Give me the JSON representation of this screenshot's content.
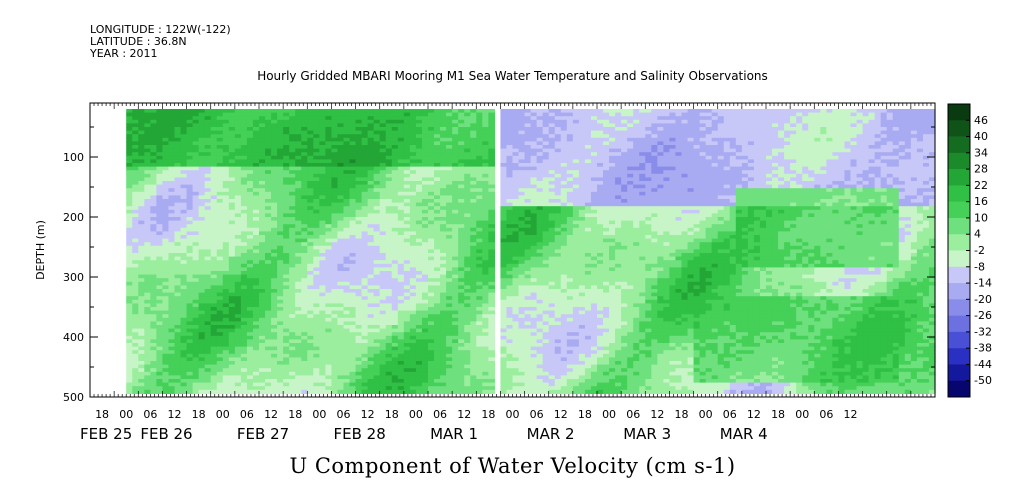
{
  "header": {
    "longitude": "LONGITUDE : 122W(-122)",
    "latitude": "LATITUDE : 36.8N",
    "year": "YEAR : 2011"
  },
  "chart_data": {
    "type": "heatmap",
    "title": "Hourly Gridded MBARI Mooring M1 Sea Water Temperature and Salinity Observations",
    "xlabel": "U Component of Water Velocity (cm s-1)",
    "ylabel": "DEPTH (m)",
    "ylim": [
      500,
      10
    ],
    "y_ticks": [
      100,
      200,
      300,
      400,
      500
    ],
    "x_range_hours": [
      0,
      210
    ],
    "data_start_hour": 9,
    "gap_hours": [
      99.5,
      101.5
    ],
    "hour_labels": [
      "18",
      "00",
      "06",
      "12",
      "18",
      "00",
      "06",
      "12",
      "18",
      "00",
      "06",
      "12",
      "18",
      "00",
      "06",
      "12",
      "18",
      "00",
      "06",
      "12",
      "18",
      "00",
      "06",
      "12",
      "18",
      "00",
      "06",
      "12",
      "18",
      "00",
      "06",
      "12"
    ],
    "day_labels": [
      {
        "text": "FEB 25",
        "hour": 0
      },
      {
        "text": "FEB 26",
        "hour": 15
      },
      {
        "text": "FEB 27",
        "hour": 39
      },
      {
        "text": "FEB 28",
        "hour": 63
      },
      {
        "text": "MAR  1",
        "hour": 87
      },
      {
        "text": "MAR  2",
        "hour": 111
      },
      {
        "text": "MAR  3",
        "hour": 135
      },
      {
        "text": "MAR  4",
        "hour": 159
      }
    ],
    "colorbar": {
      "labels": [
        "46",
        "40",
        "34",
        "28",
        "22",
        "16",
        "10",
        "4",
        "-2",
        "-8",
        "-14",
        "-20",
        "-26",
        "-32",
        "-38",
        "-44",
        "-50"
      ],
      "colors": [
        "#0a3a10",
        "#0f5318",
        "#146c20",
        "#1a8a2a",
        "#23a636",
        "#2fc045",
        "#45d058",
        "#6ee07e",
        "#9aee9e",
        "#c8f5c8",
        "#c8c8f8",
        "#a8aaf2",
        "#8a8cea",
        "#6c70e0",
        "#4a50d6",
        "#2a30c2",
        "#14189c",
        "#06066e"
      ]
    },
    "band_features": [
      {
        "name": "surface positive",
        "from_hour": 9,
        "to_hour": 99,
        "depth": [
          20,
          110
        ],
        "value": 20
      },
      {
        "name": "shallow negative core",
        "from_hour": 100,
        "to_hour": 210,
        "depth": [
          20,
          180
        ],
        "value": -16
      },
      {
        "name": "mid-depth positive",
        "from_hour": 160,
        "to_hour": 200,
        "depth": [
          150,
          280
        ],
        "value": 14
      },
      {
        "name": "deep positive",
        "from_hour": 150,
        "to_hour": 200,
        "depth": [
          330,
          470
        ],
        "value": 12
      }
    ]
  }
}
